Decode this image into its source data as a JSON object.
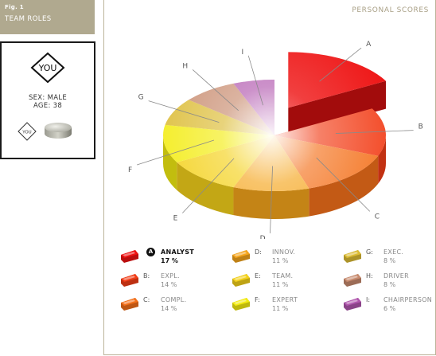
{
  "figure": {
    "number": "Fig. 1",
    "label": "TEAM ROLES"
  },
  "profile": {
    "you_label": "YOU",
    "sex": "SEX: MALE",
    "age": "AGE: 38"
  },
  "panel": {
    "title": "PERSONAL SCORES"
  },
  "chart_data": {
    "type": "pie",
    "title": "",
    "exploded": "A",
    "slices": [
      {
        "letter": "A",
        "name": "ANALYST",
        "value": 17,
        "pct_label": "17 %",
        "color": "#ee1111",
        "highlight": true
      },
      {
        "letter": "B",
        "name": "EXPL.",
        "value": 14,
        "pct_label": "14 %",
        "color": "#f23d17",
        "highlight": false
      },
      {
        "letter": "C",
        "name": "COMPL.",
        "value": 14,
        "pct_label": "14 %",
        "color": "#f4701a",
        "highlight": false
      },
      {
        "letter": "D",
        "name": "INNOV.",
        "value": 11,
        "pct_label": "11 %",
        "color": "#f5a51c",
        "highlight": false
      },
      {
        "letter": "E",
        "name": "TEAM.",
        "value": 11,
        "pct_label": "11 %",
        "color": "#f4d11a",
        "highlight": false
      },
      {
        "letter": "F",
        "name": "EXPERT",
        "value": 11,
        "pct_label": "11 %",
        "color": "#f3ec12",
        "highlight": false
      },
      {
        "letter": "G",
        "name": "EXEC.",
        "value": 8,
        "pct_label": "8 %",
        "color": "#dcbc35",
        "highlight": false
      },
      {
        "letter": "H",
        "name": "DRIVER",
        "value": 8,
        "pct_label": "8 %",
        "color": "#c88b6e",
        "highlight": false
      },
      {
        "letter": "I",
        "name": "CHAIRPERSON",
        "value": 6,
        "pct_label": "6 %",
        "color": "#b157ae",
        "highlight": false
      }
    ]
  }
}
